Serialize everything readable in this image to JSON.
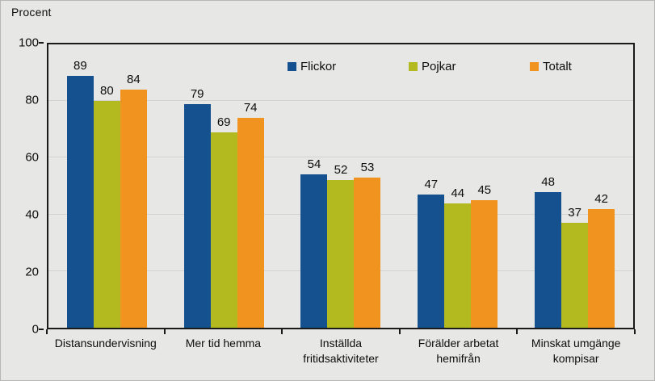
{
  "chart_data": {
    "type": "bar",
    "title": "",
    "ylabel": "Procent",
    "xlabel": "",
    "ylim": [
      0,
      100
    ],
    "yticks": [
      0,
      20,
      40,
      60,
      80,
      100
    ],
    "grid": true,
    "legend_position": "top-center-inside",
    "categories": [
      "Distansundervisning",
      "Mer tid hemma",
      "Inställda fritidsaktiviteter",
      "Förälder arbetat hemifrån",
      "Minskat umgänge kompisar"
    ],
    "series": [
      {
        "name": "Flickor",
        "color": "#15518E",
        "values": [
          89,
          79,
          54,
          47,
          48
        ]
      },
      {
        "name": "Pojkar",
        "color": "#B3BA1F",
        "values": [
          80,
          69,
          52,
          44,
          37
        ]
      },
      {
        "name": "Totalt",
        "color": "#F0941F",
        "values": [
          84,
          74,
          53,
          45,
          42
        ]
      }
    ]
  },
  "colors": {
    "background": "#E7E7E6",
    "gridline": "#D2D2CF",
    "axis": "#1A1A1A",
    "text": "#0D0D0D"
  }
}
